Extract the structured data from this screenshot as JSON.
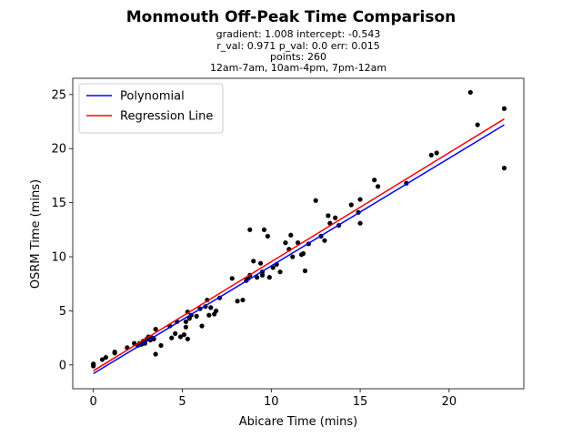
{
  "chart_data": {
    "type": "scatter",
    "title": "Monmouth Off-Peak Time Comparison",
    "subtitle_lines": [
      "gradient: 1.008  intercept: -0.543",
      "r_val: 0.971  p_val: 0.0  err: 0.015",
      "points: 260",
      "12am-7am, 10am-4pm, 7pm-12am"
    ],
    "xlabel": "Abicare Time (mins)",
    "ylabel": "OSRM Time (mins)",
    "xlim": [
      -1.16,
      24.2
    ],
    "ylim": [
      -2.2,
      26.5
    ],
    "xticks": [
      0,
      5,
      10,
      15,
      20
    ],
    "yticks": [
      0,
      5,
      10,
      15,
      20,
      25
    ],
    "grid": false,
    "legend_position": "top-left",
    "series": [
      {
        "name": "Polynomial",
        "kind": "line",
        "color": "#0000ff",
        "x": [
          0,
          23.1
        ],
        "y": [
          -0.8,
          22.2
        ]
      },
      {
        "name": "Regression Line",
        "kind": "line",
        "color": "#ff0000",
        "x": [
          0,
          23.1
        ],
        "y": [
          -0.543,
          22.74
        ]
      },
      {
        "kind": "scatter",
        "color": "#000000",
        "points": [
          [
            0,
            0
          ],
          [
            0,
            -0.1
          ],
          [
            0,
            0.1
          ],
          [
            0.5,
            0.5
          ],
          [
            0.7,
            0.7
          ],
          [
            1.2,
            1.1
          ],
          [
            1.2,
            1.2
          ],
          [
            1.9,
            1.6
          ],
          [
            2.3,
            2.0
          ],
          [
            2.5,
            1.8
          ],
          [
            2.6,
            2.0
          ],
          [
            2.7,
            1.9
          ],
          [
            2.8,
            2.2
          ],
          [
            2.9,
            2.0
          ],
          [
            3.0,
            2.4
          ],
          [
            3.1,
            2.6
          ],
          [
            3.2,
            2.3
          ],
          [
            3.3,
            2.5
          ],
          [
            3.4,
            2.4
          ],
          [
            3.5,
            3.3
          ],
          [
            3.5,
            1.0
          ],
          [
            3.8,
            1.8
          ],
          [
            4.3,
            3.6
          ],
          [
            4.4,
            2.5
          ],
          [
            4.6,
            2.9
          ],
          [
            4.7,
            4.0
          ],
          [
            4.9,
            2.6
          ],
          [
            5.1,
            2.8
          ],
          [
            5.2,
            3.5
          ],
          [
            5.2,
            4.0
          ],
          [
            5.3,
            2.4
          ],
          [
            5.3,
            4.9
          ],
          [
            5.4,
            4.3
          ],
          [
            5.5,
            4.6
          ],
          [
            5.8,
            4.5
          ],
          [
            6.0,
            5.2
          ],
          [
            6.1,
            3.6
          ],
          [
            6.3,
            5.4
          ],
          [
            6.4,
            6.0
          ],
          [
            6.5,
            4.6
          ],
          [
            6.6,
            5.3
          ],
          [
            6.8,
            4.7
          ],
          [
            6.9,
            5.0
          ],
          [
            7.1,
            6.2
          ],
          [
            7.8,
            8.0
          ],
          [
            8.1,
            5.9
          ],
          [
            8.4,
            6.0
          ],
          [
            8.6,
            7.8
          ],
          [
            8.7,
            8.0
          ],
          [
            8.8,
            8.3
          ],
          [
            8.8,
            12.5
          ],
          [
            9.0,
            9.6
          ],
          [
            9.2,
            8.1
          ],
          [
            9.4,
            9.4
          ],
          [
            9.5,
            8.3
          ],
          [
            9.5,
            8.6
          ],
          [
            9.6,
            12.5
          ],
          [
            9.8,
            11.9
          ],
          [
            9.9,
            8.1
          ],
          [
            10.1,
            9.0
          ],
          [
            10.3,
            9.3
          ],
          [
            10.5,
            8.6
          ],
          [
            10.8,
            11.3
          ],
          [
            11.0,
            10.7
          ],
          [
            11.1,
            12.0
          ],
          [
            11.2,
            10.0
          ],
          [
            11.5,
            11.3
          ],
          [
            11.7,
            10.2
          ],
          [
            11.8,
            10.3
          ],
          [
            11.9,
            8.7
          ],
          [
            12.1,
            11.2
          ],
          [
            12.5,
            15.2
          ],
          [
            12.8,
            11.9
          ],
          [
            13.0,
            11.5
          ],
          [
            13.2,
            13.8
          ],
          [
            13.3,
            13.1
          ],
          [
            13.6,
            13.6
          ],
          [
            13.8,
            12.9
          ],
          [
            14.5,
            14.8
          ],
          [
            14.9,
            14.1
          ],
          [
            15.0,
            13.1
          ],
          [
            15.0,
            15.3
          ],
          [
            15.8,
            17.1
          ],
          [
            16.0,
            16.5
          ],
          [
            17.6,
            16.8
          ],
          [
            19.0,
            19.4
          ],
          [
            19.3,
            19.6
          ],
          [
            21.2,
            25.2
          ],
          [
            21.6,
            22.2
          ],
          [
            23.1,
            23.7
          ],
          [
            23.1,
            18.2
          ]
        ]
      }
    ]
  }
}
